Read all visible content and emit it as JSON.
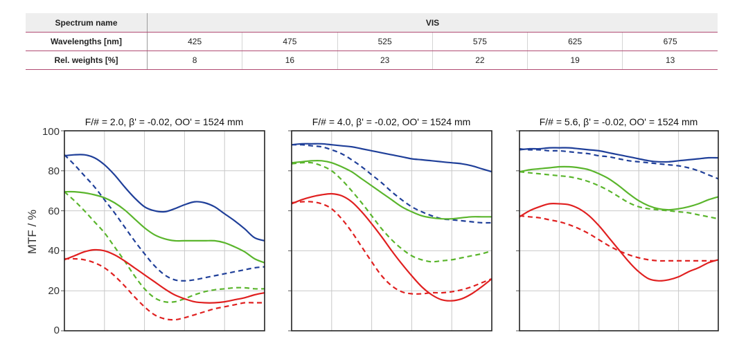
{
  "table": {
    "spectrum_label": "Spectrum name",
    "spectrum_value": "VIS",
    "wavelengths_label": "Wavelengths [nm]",
    "wavelengths": [
      "425",
      "475",
      "525",
      "575",
      "625",
      "675"
    ],
    "weights_label": "Rel. weights [%]",
    "weights": [
      "8",
      "16",
      "23",
      "22",
      "19",
      "13"
    ]
  },
  "colors": {
    "blue": "#1f3f99",
    "green": "#5ab52c",
    "red": "#e02020",
    "grid": "#c8c8c8"
  },
  "chart_data": [
    {
      "type": "line",
      "title": "F/# = 2.0, β' = -0.02, OO' = 1524 mm",
      "ylabel": "MTF / %",
      "ylim": [
        0,
        100
      ],
      "yticks": [
        "0",
        "20",
        "40",
        "60",
        "80",
        "100"
      ],
      "x": [
        0,
        0.05,
        0.1,
        0.15,
        0.2,
        0.25,
        0.3,
        0.35,
        0.4,
        0.45,
        0.5,
        0.55,
        0.6,
        0.65,
        0.7,
        0.75,
        0.8,
        0.85,
        0.9,
        0.95,
        1.0
      ],
      "grid": true,
      "series": [
        {
          "color": "blue",
          "dash": false,
          "values": [
            87.5,
            88,
            88,
            86.5,
            83,
            78,
            72,
            66.5,
            62,
            60,
            59.5,
            61,
            63,
            64.5,
            64,
            62,
            58.5,
            55,
            51,
            46.5,
            45
          ]
        },
        {
          "color": "blue",
          "dash": true,
          "values": [
            88,
            83,
            77.5,
            72,
            65.5,
            59,
            52,
            45,
            38.5,
            32.5,
            28,
            25.5,
            25,
            25.5,
            26.5,
            27.5,
            28.5,
            29.5,
            30.5,
            31.5,
            32
          ]
        },
        {
          "color": "green",
          "dash": false,
          "values": [
            69.5,
            69.5,
            69,
            68,
            66.5,
            64,
            60.5,
            56,
            51.5,
            48,
            46,
            45,
            45,
            45,
            45,
            45,
            44,
            42,
            39.5,
            36,
            34
          ]
        },
        {
          "color": "green",
          "dash": true,
          "values": [
            69.5,
            65,
            60,
            54.5,
            49,
            42,
            35,
            27.5,
            21,
            16.5,
            14.5,
            14.5,
            16,
            18,
            19.5,
            20.5,
            21,
            21.5,
            21.5,
            21,
            21
          ]
        },
        {
          "color": "red",
          "dash": false,
          "values": [
            35.5,
            37.5,
            39.5,
            40.5,
            40,
            38,
            35,
            31.5,
            28,
            24.5,
            21,
            18,
            16,
            14.5,
            14,
            14,
            14.5,
            15.5,
            16.5,
            18,
            19
          ]
        },
        {
          "color": "red",
          "dash": true,
          "values": [
            36,
            36,
            35.5,
            34,
            31.5,
            27.5,
            22.5,
            17,
            12,
            8,
            6,
            5.5,
            6.5,
            8,
            9.5,
            11,
            12,
            13,
            14,
            14,
            14
          ]
        }
      ]
    },
    {
      "type": "line",
      "title": "F/# = 4.0, β' = -0.02, OO' = 1524 mm",
      "ylim": [
        0,
        100
      ],
      "x": [
        0,
        0.05,
        0.1,
        0.15,
        0.2,
        0.25,
        0.3,
        0.35,
        0.4,
        0.45,
        0.5,
        0.55,
        0.6,
        0.65,
        0.7,
        0.75,
        0.8,
        0.85,
        0.9,
        0.95,
        1.0
      ],
      "grid": true,
      "series": [
        {
          "color": "blue",
          "dash": false,
          "values": [
            93,
            93.5,
            93.5,
            93.5,
            93,
            92.5,
            92,
            91,
            90,
            89,
            88,
            87,
            86,
            85.5,
            85,
            84.5,
            84,
            83.5,
            82.5,
            81,
            79.5
          ]
        },
        {
          "color": "blue",
          "dash": true,
          "values": [
            93,
            93,
            92.5,
            92,
            90.5,
            88.5,
            85.5,
            82,
            78,
            74,
            69.5,
            65.5,
            62,
            59.5,
            57.5,
            56,
            55.5,
            55,
            54.5,
            54,
            54
          ]
        },
        {
          "color": "green",
          "dash": false,
          "values": [
            84,
            84.5,
            85,
            85,
            84,
            82,
            79.5,
            76,
            72.5,
            69,
            65.5,
            62,
            59.5,
            57.5,
            56.5,
            56,
            56,
            56.5,
            57,
            57,
            57
          ]
        },
        {
          "color": "green",
          "dash": true,
          "values": [
            83.5,
            84,
            84,
            82.5,
            80,
            75.5,
            70,
            64,
            57.5,
            51,
            45.5,
            41,
            37.5,
            35.5,
            34.5,
            35,
            35.5,
            36.5,
            37.5,
            38.5,
            40
          ]
        },
        {
          "color": "red",
          "dash": false,
          "values": [
            63.5,
            65.5,
            67,
            68,
            68.5,
            67.5,
            64.5,
            59.5,
            53.5,
            47,
            40,
            33.5,
            27.5,
            22,
            18,
            15.5,
            15,
            16,
            18.5,
            22,
            26
          ]
        },
        {
          "color": "red",
          "dash": true,
          "values": [
            64,
            64.5,
            64.5,
            63.5,
            61,
            56,
            49.5,
            42,
            34.5,
            27.5,
            22.5,
            19.5,
            18.5,
            18.5,
            19,
            19,
            19.5,
            20.5,
            22,
            24,
            26
          ]
        }
      ]
    },
    {
      "type": "line",
      "title": "F/# = 5.6, β' = -0.02, OO' = 1524 mm",
      "ylim": [
        0,
        100
      ],
      "x": [
        0,
        0.05,
        0.1,
        0.15,
        0.2,
        0.25,
        0.3,
        0.35,
        0.4,
        0.45,
        0.5,
        0.55,
        0.6,
        0.65,
        0.7,
        0.75,
        0.8,
        0.85,
        0.9,
        0.95,
        1.0
      ],
      "grid": true,
      "series": [
        {
          "color": "blue",
          "dash": false,
          "values": [
            90.5,
            91,
            91,
            91.5,
            91.5,
            91.5,
            91,
            90.5,
            90,
            89,
            88,
            87,
            86,
            85,
            84.5,
            84.5,
            85,
            85.5,
            86,
            86.5,
            86.5
          ]
        },
        {
          "color": "blue",
          "dash": true,
          "values": [
            91,
            90.5,
            90.5,
            90,
            90,
            89.5,
            89,
            88.5,
            87.5,
            87,
            86,
            85,
            84.5,
            84,
            83.5,
            83,
            82.5,
            81.5,
            80,
            78,
            76
          ]
        },
        {
          "color": "green",
          "dash": false,
          "values": [
            79.5,
            80.5,
            81,
            81.5,
            82,
            82,
            81.5,
            80.5,
            78.5,
            76,
            72.5,
            68.5,
            65,
            62.5,
            61,
            60.5,
            61,
            62,
            63.5,
            65.5,
            67
          ]
        },
        {
          "color": "green",
          "dash": true,
          "values": [
            79.5,
            79,
            78.5,
            78,
            77.5,
            77,
            76,
            74.5,
            72.5,
            70,
            67,
            64,
            62,
            61,
            60.5,
            60,
            59.5,
            59,
            58,
            57,
            56
          ]
        },
        {
          "color": "red",
          "dash": false,
          "values": [
            57,
            60,
            62,
            63.5,
            63.5,
            63,
            61,
            57.5,
            52.5,
            46.5,
            40.5,
            34.5,
            29.5,
            26,
            25,
            25.5,
            27,
            29.5,
            31.5,
            34,
            35.5
          ]
        },
        {
          "color": "red",
          "dash": true,
          "values": [
            57.5,
            57,
            56.5,
            55.5,
            54.5,
            53,
            51,
            48.5,
            45.5,
            42.5,
            40,
            38,
            36.5,
            35.5,
            35,
            35,
            35,
            35,
            35,
            35,
            35
          ]
        }
      ]
    }
  ]
}
